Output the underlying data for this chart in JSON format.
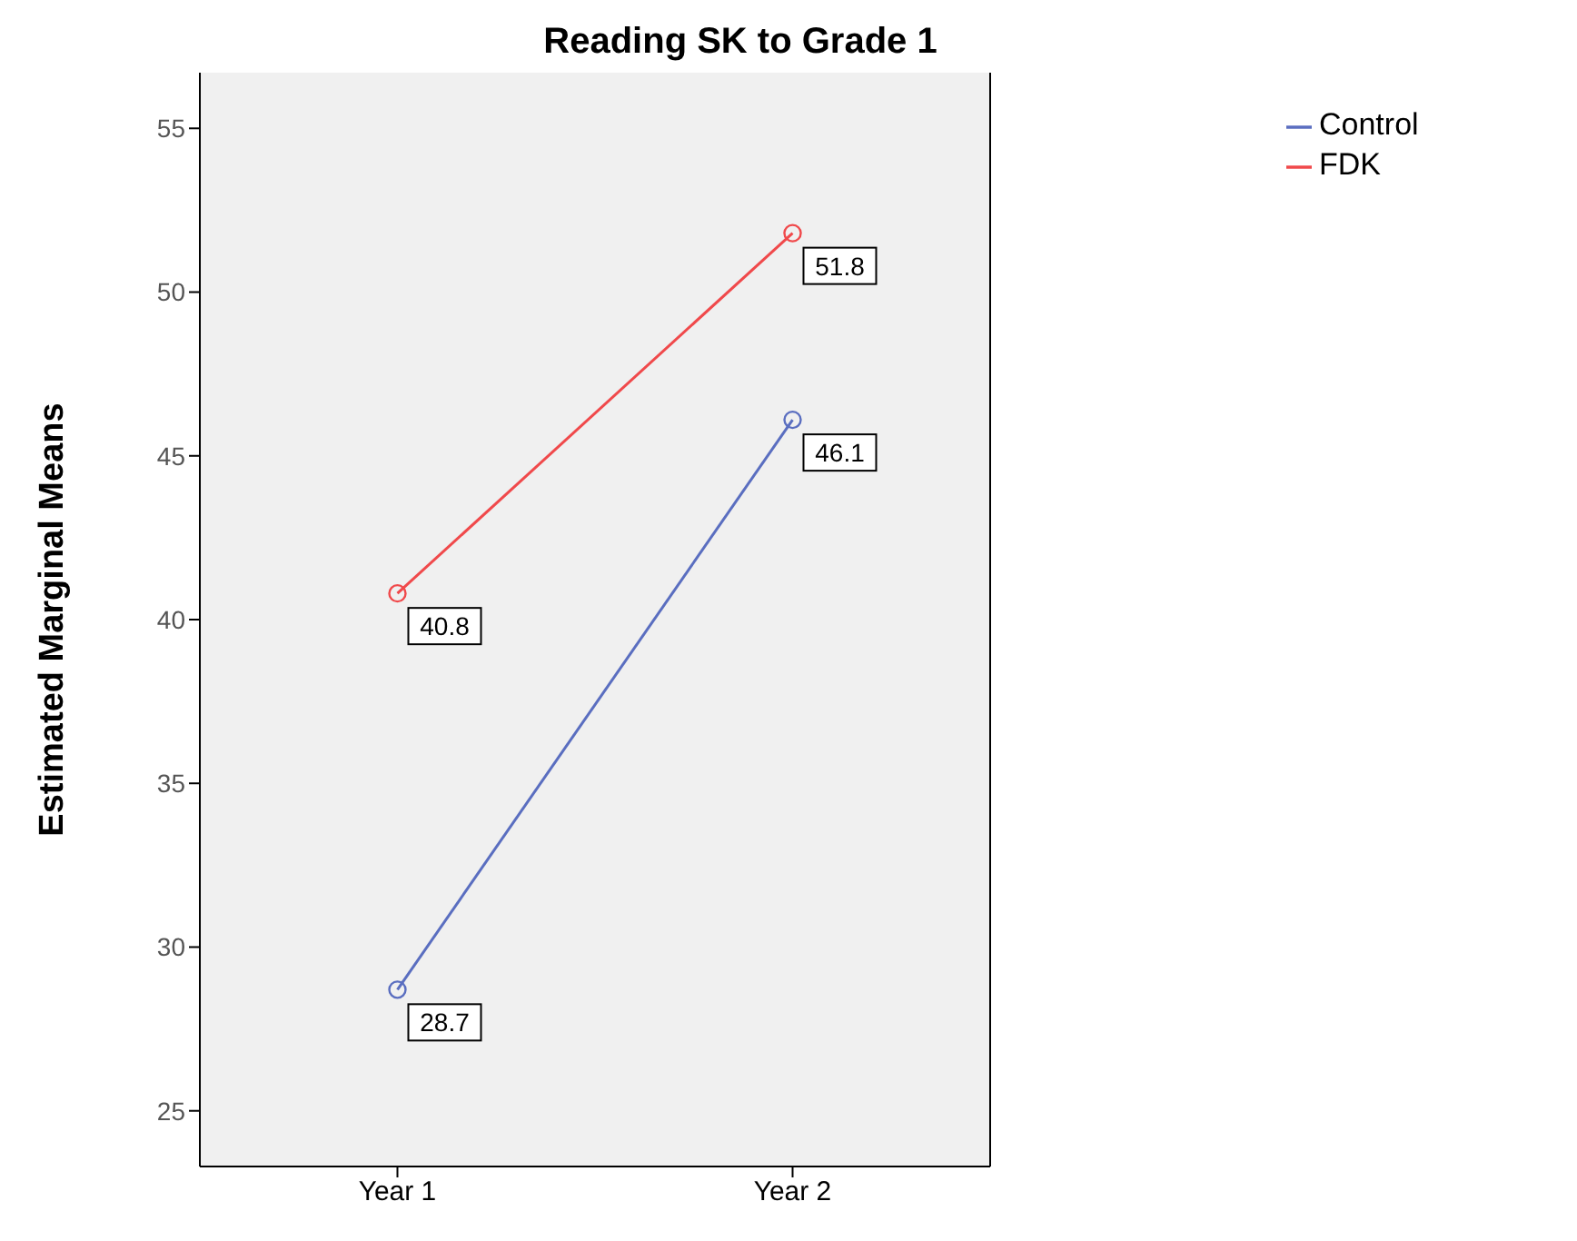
{
  "chart_data": {
    "type": "line",
    "title": "Reading SK to Grade 1",
    "ylabel": "Estimated Marginal Means",
    "categories": [
      "Year 1",
      "Year 2"
    ],
    "series": [
      {
        "name": "Control",
        "color": "#5a6ec0",
        "values": [
          28.7,
          46.1
        ]
      },
      {
        "name": "FDK",
        "color": "#f0494b",
        "values": [
          40.8,
          51.8
        ]
      }
    ],
    "ylim": [
      23.3,
      56.7
    ],
    "yticks": [
      25,
      30,
      35,
      40,
      45,
      50,
      55
    ],
    "grid": false,
    "legend": "top right",
    "marker": "circle",
    "line_style": "solid",
    "data_labels": true
  }
}
